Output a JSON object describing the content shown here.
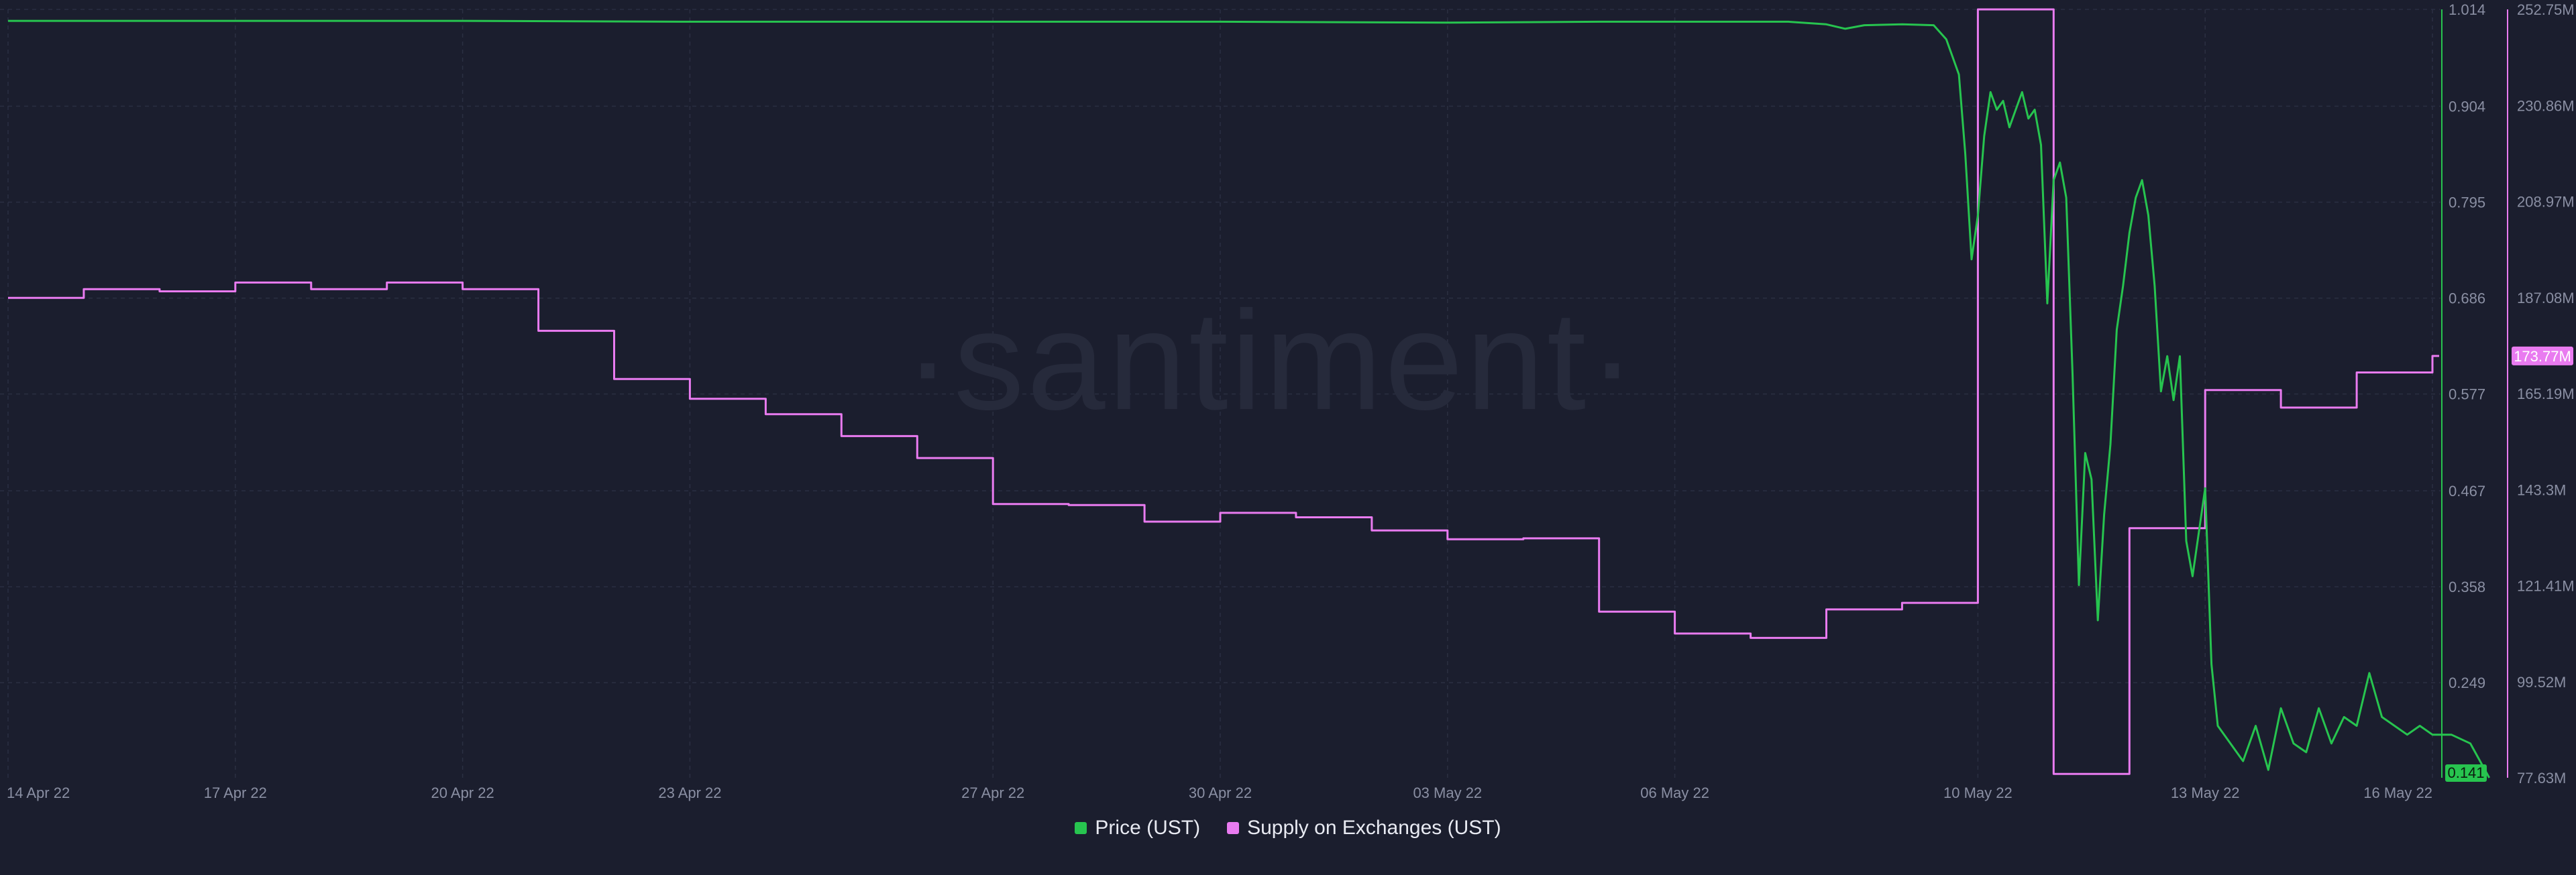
{
  "watermark": "·santiment·",
  "colors": {
    "background": "#1b1e2e",
    "price": "#27c44f",
    "supply": "#e97bf0",
    "grid": "#2b2f42",
    "axis_text": "#8a8fa3"
  },
  "legend": [
    {
      "label": "Price (UST)",
      "color": "#27c44f"
    },
    {
      "label": "Supply on Exchanges (UST)",
      "color": "#e97bf0"
    }
  ],
  "chart_data": {
    "type": "line",
    "title": "",
    "x_range": [
      "2022-04-14",
      "2022-05-16"
    ],
    "x_ticks": [
      "14 Apr 22",
      "17 Apr 22",
      "20 Apr 22",
      "23 Apr 22",
      "27 Apr 22",
      "30 Apr 22",
      "03 May 22",
      "06 May 22",
      "10 May 22",
      "13 May 22",
      "16 May 22"
    ],
    "y_price": {
      "label": "Price (UST)",
      "range": [
        0.141,
        1.014
      ],
      "ticks": [
        "1.014",
        "0.904",
        "0.795",
        "0.686",
        "0.577",
        "0.467",
        "0.358",
        "0.249"
      ],
      "last_value_badge": "0.141"
    },
    "y_supply": {
      "label": "Supply on Exchanges (UST)",
      "range": [
        77.63,
        252.75
      ],
      "unit": "M",
      "ticks": [
        "252.75M",
        "230.86M",
        "208.97M",
        "187.08M",
        "165.19M",
        "143.3M",
        "121.41M",
        "99.52M",
        "77.63M"
      ],
      "last_value_badge": "173.77M"
    },
    "grid": true,
    "legend_position": "bottom-center",
    "series": [
      {
        "name": "Price (UST)",
        "axis": "left",
        "points": [
          [
            "2022-04-14",
            1.001
          ],
          [
            "2022-04-17",
            1.001
          ],
          [
            "2022-04-20",
            1.001
          ],
          [
            "2022-04-23",
            1.0
          ],
          [
            "2022-04-27",
            1.0
          ],
          [
            "2022-04-30",
            1.0
          ],
          [
            "2022-05-03",
            0.999
          ],
          [
            "2022-05-05",
            1.0
          ],
          [
            "2022-05-07 12:00",
            1.0
          ],
          [
            "2022-05-08 00:00",
            0.997
          ],
          [
            "2022-05-08 06:00",
            0.992
          ],
          [
            "2022-05-08 12:00",
            0.996
          ],
          [
            "2022-05-09 00:00",
            0.997
          ],
          [
            "2022-05-09 10:00",
            0.996
          ],
          [
            "2022-05-09 14:00",
            0.98
          ],
          [
            "2022-05-09 18:00",
            0.94
          ],
          [
            "2022-05-09 20:00",
            0.85
          ],
          [
            "2022-05-09 22:00",
            0.73
          ],
          [
            "2022-05-10 00:00",
            0.78
          ],
          [
            "2022-05-10 02:00",
            0.87
          ],
          [
            "2022-05-10 04:00",
            0.92
          ],
          [
            "2022-05-10 06:00",
            0.9
          ],
          [
            "2022-05-10 08:00",
            0.91
          ],
          [
            "2022-05-10 10:00",
            0.88
          ],
          [
            "2022-05-10 12:00",
            0.9
          ],
          [
            "2022-05-10 14:00",
            0.92
          ],
          [
            "2022-05-10 16:00",
            0.89
          ],
          [
            "2022-05-10 18:00",
            0.9
          ],
          [
            "2022-05-10 20:00",
            0.86
          ],
          [
            "2022-05-10 22:00",
            0.68
          ],
          [
            "2022-05-11 00:00",
            0.82
          ],
          [
            "2022-05-11 02:00",
            0.84
          ],
          [
            "2022-05-11 04:00",
            0.8
          ],
          [
            "2022-05-11 06:00",
            0.6
          ],
          [
            "2022-05-11 08:00",
            0.36
          ],
          [
            "2022-05-11 10:00",
            0.51
          ],
          [
            "2022-05-11 12:00",
            0.48
          ],
          [
            "2022-05-11 14:00",
            0.32
          ],
          [
            "2022-05-11 16:00",
            0.44
          ],
          [
            "2022-05-11 18:00",
            0.52
          ],
          [
            "2022-05-11 20:00",
            0.65
          ],
          [
            "2022-05-11 22:00",
            0.7
          ],
          [
            "2022-05-12 00:00",
            0.76
          ],
          [
            "2022-05-12 02:00",
            0.8
          ],
          [
            "2022-05-12 04:00",
            0.82
          ],
          [
            "2022-05-12 06:00",
            0.78
          ],
          [
            "2022-05-12 08:00",
            0.7
          ],
          [
            "2022-05-12 10:00",
            0.58
          ],
          [
            "2022-05-12 12:00",
            0.62
          ],
          [
            "2022-05-12 14:00",
            0.57
          ],
          [
            "2022-05-12 16:00",
            0.62
          ],
          [
            "2022-05-12 18:00",
            0.41
          ],
          [
            "2022-05-12 20:00",
            0.37
          ],
          [
            "2022-05-12 22:00",
            0.42
          ],
          [
            "2022-05-13 00:00",
            0.47
          ],
          [
            "2022-05-13 02:00",
            0.27
          ],
          [
            "2022-05-13 04:00",
            0.2
          ],
          [
            "2022-05-13 08:00",
            0.18
          ],
          [
            "2022-05-13 12:00",
            0.16
          ],
          [
            "2022-05-13 16:00",
            0.2
          ],
          [
            "2022-05-13 20:00",
            0.15
          ],
          [
            "2022-05-14 00:00",
            0.22
          ],
          [
            "2022-05-14 04:00",
            0.18
          ],
          [
            "2022-05-14 08:00",
            0.17
          ],
          [
            "2022-05-14 12:00",
            0.22
          ],
          [
            "2022-05-14 16:00",
            0.18
          ],
          [
            "2022-05-14 20:00",
            0.21
          ],
          [
            "2022-05-15 00:00",
            0.2
          ],
          [
            "2022-05-15 04:00",
            0.26
          ],
          [
            "2022-05-15 08:00",
            0.21
          ],
          [
            "2022-05-15 12:00",
            0.2
          ],
          [
            "2022-05-15 16:00",
            0.19
          ],
          [
            "2022-05-15 20:00",
            0.2
          ],
          [
            "2022-05-16 00:00",
            0.19
          ],
          [
            "2022-05-16 06:00",
            0.19
          ],
          [
            "2022-05-16 12:00",
            0.18
          ],
          [
            "2022-05-16 18:00",
            0.141
          ]
        ]
      },
      {
        "name": "Supply on Exchanges (UST)",
        "axis": "right",
        "step": true,
        "points": [
          [
            "2022-04-14",
            187.0
          ],
          [
            "2022-04-15",
            189.0
          ],
          [
            "2022-04-16",
            188.5
          ],
          [
            "2022-04-17",
            190.5
          ],
          [
            "2022-04-18",
            189.0
          ],
          [
            "2022-04-19",
            190.5
          ],
          [
            "2022-04-20",
            189.0
          ],
          [
            "2022-04-21",
            179.5
          ],
          [
            "2022-04-22",
            168.5
          ],
          [
            "2022-04-23",
            164.0
          ],
          [
            "2022-04-24",
            160.5
          ],
          [
            "2022-04-25",
            155.5
          ],
          [
            "2022-04-26",
            150.5
          ],
          [
            "2022-04-27",
            140.0
          ],
          [
            "2022-04-28",
            139.8
          ],
          [
            "2022-04-29",
            136.0
          ],
          [
            "2022-04-30",
            138.0
          ],
          [
            "2022-05-01",
            137.0
          ],
          [
            "2022-05-02",
            134.0
          ],
          [
            "2022-05-03",
            132.0
          ],
          [
            "2022-05-04",
            132.2
          ],
          [
            "2022-05-05",
            115.5
          ],
          [
            "2022-05-06",
            110.5
          ],
          [
            "2022-05-07",
            109.5
          ],
          [
            "2022-05-08",
            116.0
          ],
          [
            "2022-05-09",
            117.5
          ],
          [
            "2022-05-10",
            252.75
          ],
          [
            "2022-05-11",
            78.5
          ],
          [
            "2022-05-12",
            134.5
          ],
          [
            "2022-05-13",
            166.0
          ],
          [
            "2022-05-14",
            162.0
          ],
          [
            "2022-05-15",
            170.0
          ],
          [
            "2022-05-16",
            173.77
          ]
        ]
      }
    ]
  }
}
